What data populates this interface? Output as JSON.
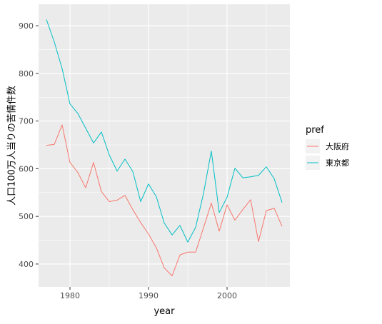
{
  "chart_data": {
    "type": "line",
    "xlabel": "year",
    "ylabel": "人口100万人当りの苦情件数",
    "xlim": [
      1976.0,
      2008.0
    ],
    "ylim": [
      352,
      945
    ],
    "x_ticks": [
      1980,
      1990,
      2000
    ],
    "y_ticks": [
      400,
      500,
      600,
      700,
      800,
      900
    ],
    "grid": true,
    "legend": {
      "title": "pref",
      "position": "right"
    },
    "series": [
      {
        "name": "大阪府",
        "color": "#F8766D",
        "x": [
          1977,
          1978,
          1979,
          1980,
          1981,
          1982,
          1983,
          1984,
          1985,
          1986,
          1987,
          1988,
          1989,
          1990,
          1991,
          1992,
          1993,
          1994,
          1995,
          1996,
          1997,
          1998,
          1999,
          2000,
          2001,
          2002,
          2003,
          2004,
          2005,
          2006,
          2007
        ],
        "values": [
          649,
          651,
          692,
          613,
          592,
          560,
          613,
          552,
          531,
          534,
          544,
          514,
          487,
          463,
          434,
          392,
          375,
          419,
          425,
          425,
          476,
          528,
          469,
          524,
          492,
          514,
          535,
          447,
          512,
          517,
          479
        ]
      },
      {
        "name": "東京都",
        "color": "#00BFC4",
        "x": [
          1977,
          1978,
          1979,
          1980,
          1981,
          1982,
          1983,
          1984,
          1985,
          1986,
          1987,
          1988,
          1989,
          1990,
          1991,
          1992,
          1993,
          1994,
          1995,
          1996,
          1997,
          1998,
          1999,
          2000,
          2001,
          2002,
          2003,
          2004,
          2005,
          2006,
          2007
        ],
        "values": [
          913,
          866,
          810,
          736,
          716,
          685,
          654,
          677,
          629,
          595,
          620,
          594,
          531,
          568,
          541,
          486,
          461,
          481,
          446,
          477,
          548,
          637,
          508,
          540,
          601,
          581,
          583,
          586,
          604,
          579,
          529
        ]
      }
    ]
  }
}
